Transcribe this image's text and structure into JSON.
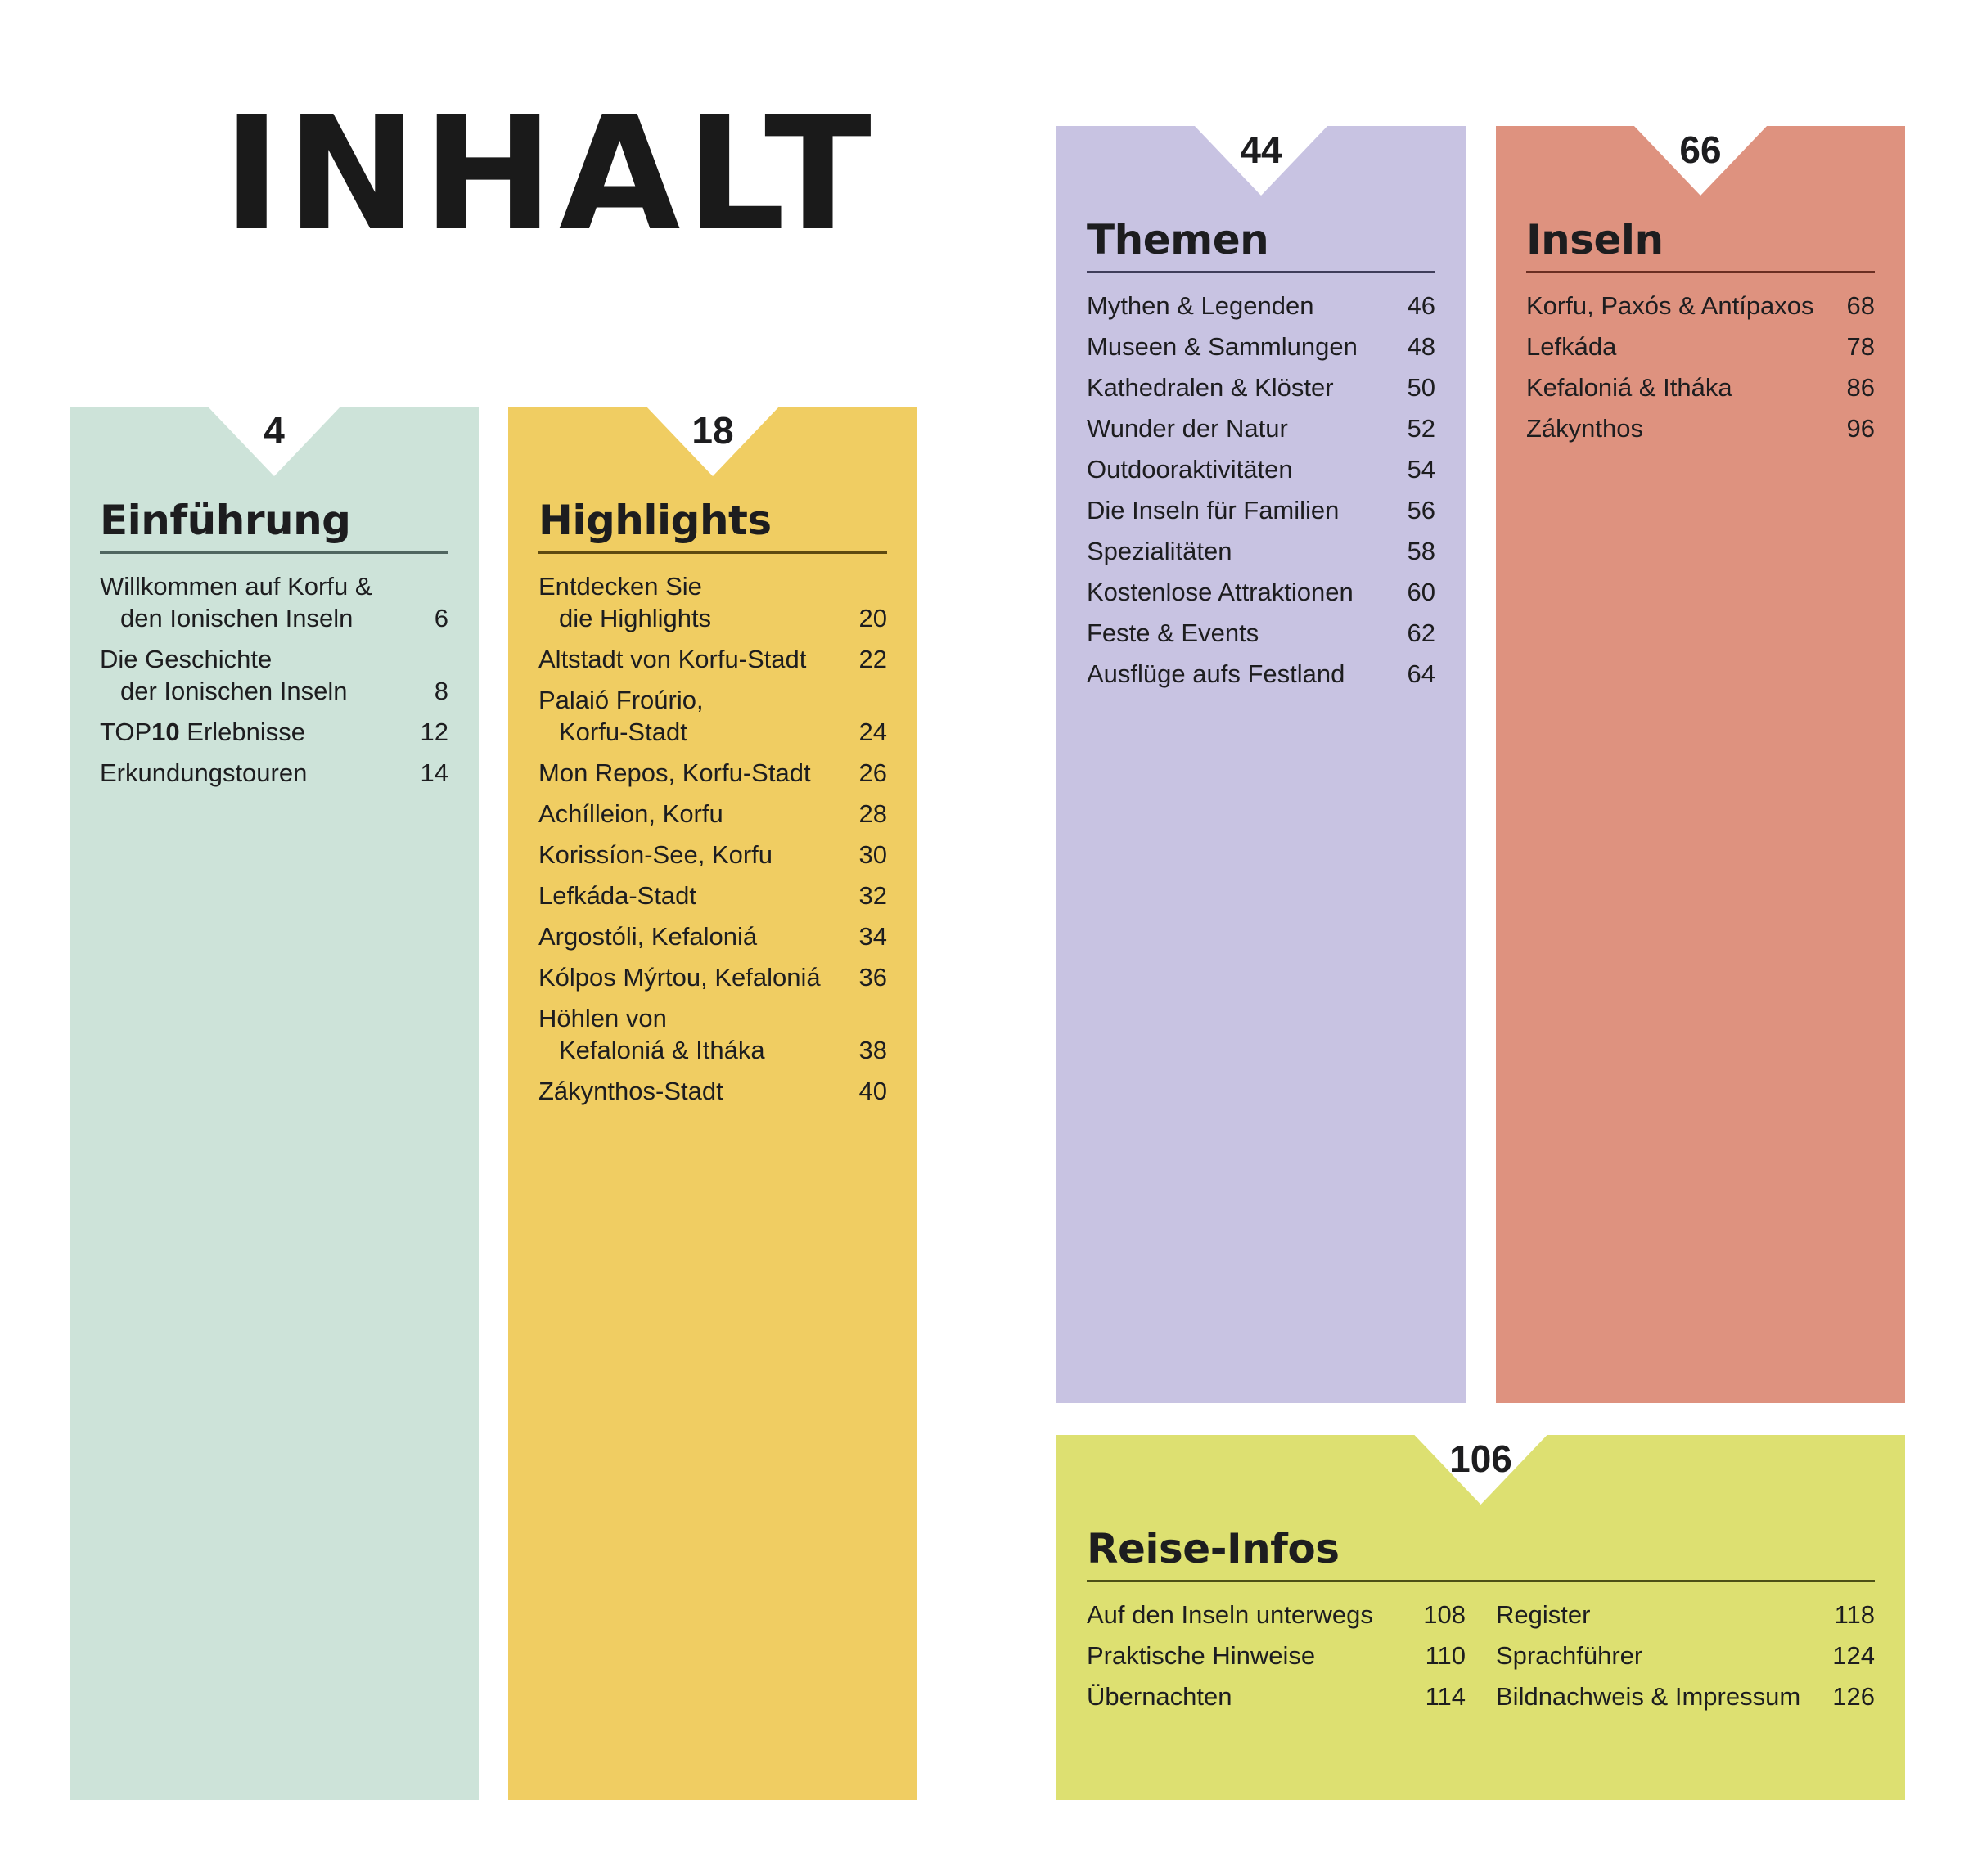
{
  "title": "INHALT",
  "colors": {
    "einfuehrung": "#cde3d9",
    "highlights": "#f0cd62",
    "themen": "#c8c3e2",
    "inseln": "#de927f",
    "reise": "#dde071",
    "text": "#1d1d1f"
  },
  "sections": {
    "einfuehrung": {
      "page": "4",
      "heading": "Einführung",
      "rule": "#4f6660",
      "items": [
        {
          "lines": [
            "Willkommen auf Korfu &",
            "den Ionischen Inseln"
          ],
          "page": "6"
        },
        {
          "lines": [
            "Die Geschichte",
            "der Ionischen Inseln"
          ],
          "page": "8"
        },
        {
          "lines": [
            "TOP|10| Erlebnisse"
          ],
          "page": "12"
        },
        {
          "lines": [
            "Erkundungstouren"
          ],
          "page": "14"
        }
      ]
    },
    "highlights": {
      "page": "18",
      "heading": "Highlights",
      "rule": "#5e4a10",
      "items": [
        {
          "lines": [
            "Entdecken Sie",
            "die Highlights"
          ],
          "page": "20"
        },
        {
          "lines": [
            "Altstadt von Korfu-Stadt"
          ],
          "page": "22"
        },
        {
          "lines": [
            "Palaió Froúrio,",
            "Korfu-Stadt"
          ],
          "page": "24"
        },
        {
          "lines": [
            "Mon Repos, Korfu-Stadt"
          ],
          "page": "26"
        },
        {
          "lines": [
            "Achílleion, Korfu"
          ],
          "page": "28"
        },
        {
          "lines": [
            "Korissíon-See, Korfu"
          ],
          "page": "30"
        },
        {
          "lines": [
            "Lefkáda-Stadt"
          ],
          "page": "32"
        },
        {
          "lines": [
            "Argostóli, Kefaloniá"
          ],
          "page": "34"
        },
        {
          "lines": [
            "Kólpos Mýrtou, Kefaloniá"
          ],
          "page": "36"
        },
        {
          "lines": [
            "Höhlen von",
            "Kefaloniá & Itháka"
          ],
          "page": "38"
        },
        {
          "lines": [
            "Zákynthos-Stadt"
          ],
          "page": "40"
        }
      ]
    },
    "themen": {
      "page": "44",
      "heading": "Themen",
      "rule": "#3f3d5a",
      "items": [
        {
          "lines": [
            "Mythen & Legenden"
          ],
          "page": "46"
        },
        {
          "lines": [
            "Museen & Sammlungen"
          ],
          "page": "48"
        },
        {
          "lines": [
            "Kathedralen & Klöster"
          ],
          "page": "50"
        },
        {
          "lines": [
            "Wunder der Natur"
          ],
          "page": "52"
        },
        {
          "lines": [
            "Outdooraktivitäten"
          ],
          "page": "54"
        },
        {
          "lines": [
            "Die Inseln für Familien"
          ],
          "page": "56"
        },
        {
          "lines": [
            "Spezialitäten"
          ],
          "page": "58"
        },
        {
          "lines": [
            "Kostenlose Attraktionen"
          ],
          "page": "60"
        },
        {
          "lines": [
            "Feste & Events"
          ],
          "page": "62"
        },
        {
          "lines": [
            "Ausflüge aufs Festland"
          ],
          "page": "64"
        }
      ]
    },
    "inseln": {
      "page": "66",
      "heading": "Inseln",
      "rule": "#6a2e22",
      "items": [
        {
          "lines": [
            "Korfu, Paxós & Antípaxos"
          ],
          "page": "68"
        },
        {
          "lines": [
            "Lefkáda"
          ],
          "page": "78"
        },
        {
          "lines": [
            "Kefaloniá & Itháka"
          ],
          "page": "86"
        },
        {
          "lines": [
            "Zákynthos"
          ],
          "page": "96"
        }
      ]
    },
    "reise": {
      "page": "106",
      "heading": "Reise-Infos",
      "rule": "#4d5016",
      "columns": [
        [
          {
            "lines": [
              "Auf den Inseln unterwegs"
            ],
            "page": "108"
          },
          {
            "lines": [
              "Praktische Hinweise"
            ],
            "page": "110"
          },
          {
            "lines": [
              "Übernachten"
            ],
            "page": "114"
          }
        ],
        [
          {
            "lines": [
              "Register"
            ],
            "page": "118"
          },
          {
            "lines": [
              "Sprachführer"
            ],
            "page": "124"
          },
          {
            "lines": [
              "Bildnachweis & Impressum"
            ],
            "page": "126"
          }
        ]
      ]
    }
  }
}
